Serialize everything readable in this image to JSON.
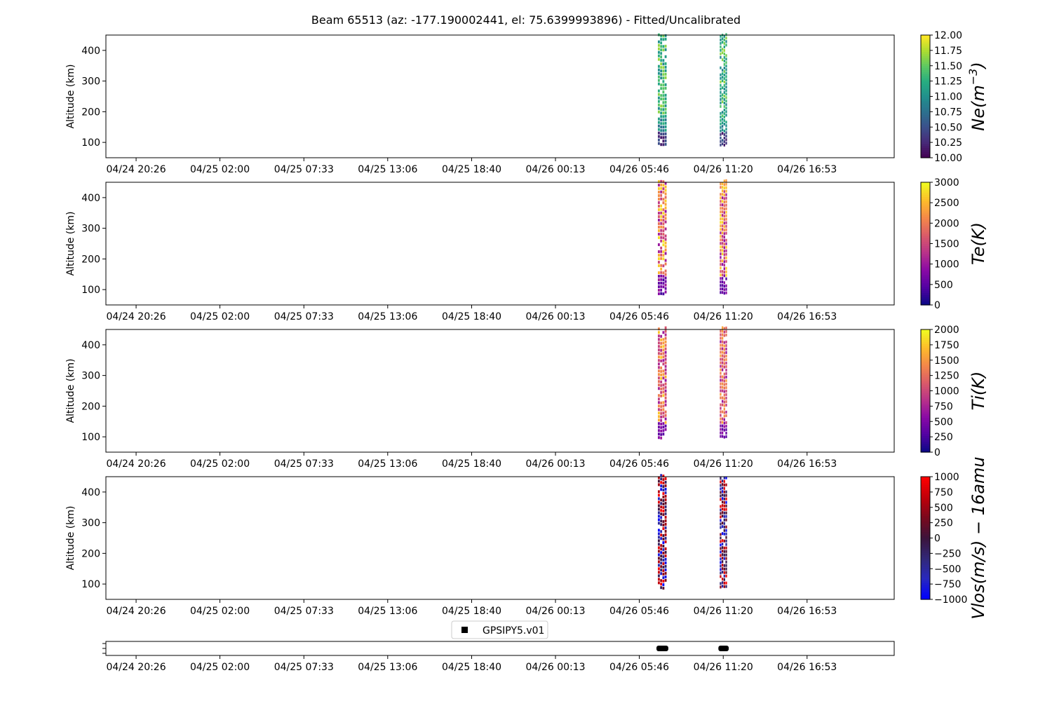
{
  "chart_data": {
    "type": "heatmap",
    "title": "Beam 65513 (az: -177.190002441, el: 75.6399993896) - Fitted/Uncalibrated",
    "x_tick_labels": [
      "04/24 20:26",
      "04/25 02:00",
      "04/25 07:33",
      "04/25 13:06",
      "04/25 18:40",
      "04/26 00:13",
      "04/26 05:46",
      "04/26 11:20",
      "04/26 16:53"
    ],
    "x_range_hours": [
      -2.0,
      50.2
    ],
    "x_tick_hours": [
      0,
      5.55,
      11.11,
      16.66,
      22.22,
      27.77,
      33.32,
      38.88,
      44.43
    ],
    "data_blocks_hours": [
      [
        34.55,
        35.15
      ],
      [
        38.65,
        39.15
      ]
    ],
    "panels": [
      {
        "name": "Ne",
        "ylabel": "Altitude (km)",
        "ylim": [
          50,
          450
        ],
        "yticks": [
          "100",
          "200",
          "300",
          "400"
        ],
        "ytick_values": [
          100,
          200,
          300,
          400
        ],
        "colorbar_label": "Ne(m^-3)",
        "colorbar_label_main": "Ne(m",
        "colorbar_label_sup": "−3",
        "colorbar_label_end": ")",
        "colorbar_range": [
          10.0,
          12.0
        ],
        "colorbar_ticks": [
          "10.00",
          "10.25",
          "10.50",
          "10.75",
          "11.00",
          "11.25",
          "11.50",
          "11.75",
          "12.00"
        ],
        "colormap": "viridis",
        "alt_bottom": 85,
        "pattern": "ne"
      },
      {
        "name": "Te",
        "ylabel": "Altitude (km)",
        "ylim": [
          50,
          450
        ],
        "yticks": [
          "100",
          "200",
          "300",
          "400"
        ],
        "ytick_values": [
          100,
          200,
          300,
          400
        ],
        "colorbar_label": "Te(K)",
        "colorbar_range": [
          0,
          3000
        ],
        "colorbar_ticks": [
          "0",
          "500",
          "1000",
          "1500",
          "2000",
          "2500",
          "3000"
        ],
        "colormap": "plasma",
        "alt_bottom": 80,
        "pattern": "te"
      },
      {
        "name": "Ti",
        "ylabel": "Altitude (km)",
        "ylim": [
          50,
          450
        ],
        "yticks": [
          "100",
          "200",
          "300",
          "400"
        ],
        "ytick_values": [
          100,
          200,
          300,
          400
        ],
        "colorbar_label": "Ti(K)",
        "colorbar_range": [
          0,
          2000
        ],
        "colorbar_ticks": [
          "0",
          "250",
          "500",
          "750",
          "1000",
          "1250",
          "1500",
          "1750",
          "2000"
        ],
        "colormap": "plasma",
        "alt_bottom": 88,
        "pattern": "ti"
      },
      {
        "name": "Vlos",
        "ylabel": "Altitude (km)",
        "ylim": [
          50,
          450
        ],
        "yticks": [
          "100",
          "200",
          "300",
          "400"
        ],
        "ytick_values": [
          100,
          200,
          300,
          400
        ],
        "colorbar_label": "Vlos(m/s) − 16amu",
        "colorbar_range": [
          -1000,
          1000
        ],
        "colorbar_ticks": [
          "−1000",
          "−750",
          "−500",
          "−250",
          "0",
          "250",
          "500",
          "750",
          "1000"
        ],
        "colormap": "bluered",
        "alt_bottom": 80,
        "pattern": "vlos"
      }
    ],
    "legend": {
      "label": "GPSIPY5.v01",
      "marker": "square"
    }
  },
  "colors": {
    "axis": "#000000",
    "background": "#ffffff",
    "marker": "#000000"
  }
}
